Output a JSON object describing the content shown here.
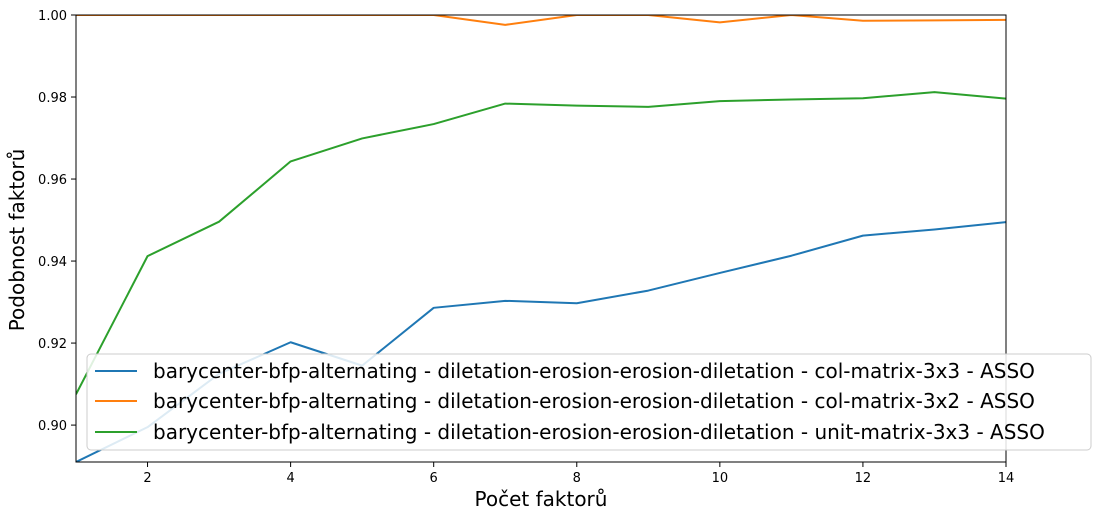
{
  "chart_data": {
    "type": "line",
    "title": "",
    "xlabel": "Počet faktorů",
    "ylabel": "Podobnost faktorů",
    "xlim": [
      1,
      14
    ],
    "ylim": [
      0.891,
      1.0
    ],
    "xticks": [
      2,
      4,
      6,
      8,
      10,
      12,
      14
    ],
    "yticks": [
      0.9,
      0.92,
      0.94,
      0.96,
      0.98,
      1.0
    ],
    "ytick_labels": [
      "0.90",
      "0.92",
      "0.94",
      "0.96",
      "0.98",
      "1.00"
    ],
    "grid": false,
    "legend_position": "lower-right",
    "x": [
      1,
      2,
      3,
      4,
      5,
      6,
      7,
      8,
      9,
      10,
      11,
      12,
      13,
      14
    ],
    "series": [
      {
        "name": "barycenter-bfp-alternating - diletation-erosion-erosion-diletation - col-matrix-3x3 - ASSO",
        "color": "#1f77b4",
        "values": [
          0.891,
          0.8995,
          0.9125,
          0.9202,
          0.9145,
          0.9286,
          0.9303,
          0.9297,
          0.9328,
          0.9371,
          0.9413,
          0.9462,
          0.9477,
          0.9495
        ]
      },
      {
        "name": "barycenter-bfp-alternating - diletation-erosion-erosion-diletation - col-matrix-3x2 - ASSO",
        "color": "#ff7f0e",
        "values": [
          1.0,
          1.0,
          1.0,
          1.0,
          1.0,
          1.0,
          0.9976,
          1.0,
          1.0,
          0.9982,
          1.0,
          0.9986,
          0.9987,
          0.9988
        ]
      },
      {
        "name": "barycenter-bfp-alternating - diletation-erosion-erosion-diletation - unit-matrix-3x3 - ASSO",
        "color": "#2ca02c",
        "values": [
          0.9075,
          0.9412,
          0.9496,
          0.9643,
          0.9699,
          0.9734,
          0.9784,
          0.9779,
          0.9776,
          0.979,
          0.9794,
          0.9797,
          0.9812,
          0.9796
        ]
      }
    ]
  }
}
